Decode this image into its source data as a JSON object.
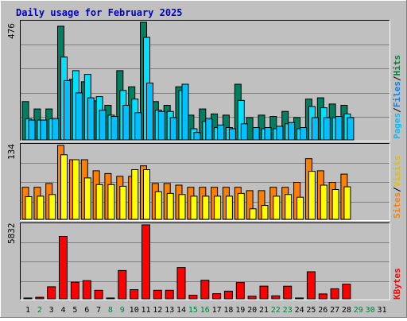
{
  "title": "Daily usage for February 2025",
  "colors": {
    "frame_bg": "#c0c0c0",
    "title": "#0000cc",
    "hits": "#008040",
    "files": "#00e0ff",
    "pages": "#00c0ff",
    "visits": "#ff8000",
    "sites": "#ffff00",
    "kbytes": "#ff0000",
    "weekday_label": "#000000",
    "weekend_label": "#008040"
  },
  "chart_data": [
    {
      "type": "bar",
      "panel": "hits-files-pages",
      "categories": [
        "1",
        "2",
        "3",
        "4",
        "5",
        "6",
        "7",
        "8",
        "9",
        "10",
        "11",
        "12",
        "13",
        "14",
        "15",
        "16",
        "17",
        "18",
        "19",
        "20",
        "21",
        "22",
        "23",
        "24",
        "25",
        "26",
        "27",
        "28",
        "29",
        "30",
        "31"
      ],
      "ymax_label": "476",
      "axis_labels": [
        "Pages",
        "Files",
        "Hits"
      ],
      "ylim": [
        0,
        476
      ],
      "series": [
        {
          "name": "Hits",
          "values": [
            155,
            125,
            125,
            460,
            245,
            235,
            158,
            140,
            280,
            215,
            476,
            155,
            140,
            215,
            100,
            125,
            105,
            100,
            225,
            90,
            100,
            95,
            115,
            90,
            165,
            170,
            145,
            140,
            0,
            0,
            0
          ]
        },
        {
          "name": "Files",
          "values": [
            85,
            80,
            85,
            335,
            280,
            265,
            175,
            100,
            200,
            165,
            415,
            120,
            115,
            200,
            45,
            75,
            50,
            50,
            160,
            0,
            45,
            45,
            65,
            45,
            135,
            130,
            90,
            105,
            0,
            0,
            0
          ]
        },
        {
          "name": "Pages",
          "values": [
            80,
            80,
            85,
            240,
            190,
            170,
            120,
            95,
            140,
            110,
            230,
            115,
            90,
            225,
            30,
            85,
            60,
            45,
            65,
            50,
            50,
            55,
            70,
            50,
            90,
            90,
            95,
            90,
            0,
            0,
            0
          ]
        }
      ]
    },
    {
      "type": "bar",
      "panel": "visits-sites",
      "categories": [
        "1",
        "2",
        "3",
        "4",
        "5",
        "6",
        "7",
        "8",
        "9",
        "10",
        "11",
        "12",
        "13",
        "14",
        "15",
        "16",
        "17",
        "18",
        "19",
        "20",
        "21",
        "22",
        "23",
        "24",
        "25",
        "26",
        "27",
        "28",
        "29",
        "30",
        "31"
      ],
      "ymax_label": "134",
      "axis_labels": [
        "Sites",
        "Visits"
      ],
      "ylim": [
        0,
        134
      ],
      "series": [
        {
          "name": "Visits",
          "values": [
            58,
            58,
            65,
            134,
            108,
            108,
            88,
            83,
            78,
            78,
            97,
            65,
            65,
            62,
            58,
            58,
            58,
            58,
            58,
            52,
            52,
            58,
            58,
            67,
            110,
            88,
            67,
            82,
            0,
            0,
            0
          ]
        },
        {
          "name": "Sites",
          "values": [
            41,
            42,
            45,
            117,
            108,
            75,
            63,
            63,
            60,
            90,
            90,
            50,
            47,
            45,
            42,
            42,
            42,
            42,
            47,
            19,
            25,
            42,
            45,
            40,
            87,
            62,
            54,
            59,
            0,
            0,
            0
          ]
        }
      ]
    },
    {
      "type": "bar",
      "panel": "kbytes",
      "categories": [
        "1",
        "2",
        "3",
        "4",
        "5",
        "6",
        "7",
        "8",
        "9",
        "10",
        "11",
        "12",
        "13",
        "14",
        "15",
        "16",
        "17",
        "18",
        "19",
        "20",
        "21",
        "22",
        "23",
        "24",
        "25",
        "26",
        "27",
        "28",
        "29",
        "30",
        "31"
      ],
      "ymax_label": "5832",
      "axis_labels": [
        "KBytes"
      ],
      "ylim": [
        0,
        5832
      ],
      "series": [
        {
          "name": "KBytes",
          "values": [
            40,
            120,
            950,
            4920,
            1310,
            1430,
            670,
            40,
            2230,
            720,
            5832,
            670,
            670,
            2470,
            280,
            1460,
            400,
            600,
            1280,
            200,
            1000,
            230,
            990,
            40,
            2130,
            380,
            790,
            1160,
            0,
            0,
            0
          ]
        }
      ]
    }
  ],
  "weekend_days": [
    "2",
    "8",
    "9",
    "15",
    "16",
    "22",
    "23",
    "29",
    "30"
  ]
}
